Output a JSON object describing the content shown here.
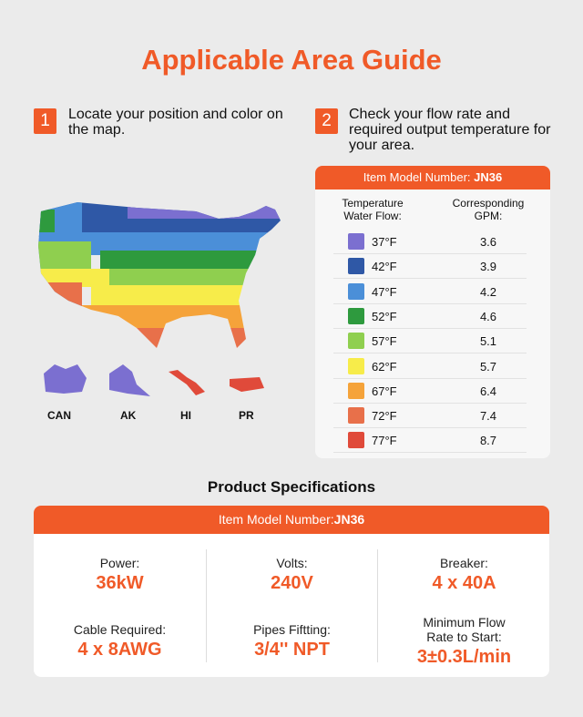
{
  "title": "Applicable Area Guide",
  "step1": {
    "number": "1",
    "text": "Locate your position and color on the map."
  },
  "step2": {
    "number": "2",
    "text": "Check your flow rate and required output temperature for your area."
  },
  "map": {
    "insets": [
      "CAN",
      "AK",
      "HI",
      "PR"
    ]
  },
  "table": {
    "header": {
      "label": "Item Model Number: ",
      "model": "JN36"
    },
    "columns": [
      "Temperature Water Flow:",
      "Corresponding GPM:"
    ],
    "rows": [
      {
        "temperature": "37°F",
        "gpm": "3.6",
        "color": "#7b6fd0"
      },
      {
        "temperature": "42°F",
        "gpm": "3.9",
        "color": "#2f58a6"
      },
      {
        "temperature": "47°F",
        "gpm": "4.2",
        "color": "#4b8fd8"
      },
      {
        "temperature": "52°F",
        "gpm": "4.6",
        "color": "#2e9a3e"
      },
      {
        "temperature": "57°F",
        "gpm": "5.1",
        "color": "#8fcf4f"
      },
      {
        "temperature": "62°F",
        "gpm": "5.7",
        "color": "#f7ec4a"
      },
      {
        "temperature": "67°F",
        "gpm": "6.4",
        "color": "#f5a33a"
      },
      {
        "temperature": "72°F",
        "gpm": "7.4",
        "color": "#e8704a"
      },
      {
        "temperature": "77°F",
        "gpm": "8.7",
        "color": "#e04a3a"
      }
    ]
  },
  "specs": {
    "title": "Product Specifications",
    "header": {
      "label": "Item Model Number:",
      "model": "JN36"
    },
    "items": [
      {
        "label": "Power:",
        "value": "36kW"
      },
      {
        "label": "Volts:",
        "value": "240V"
      },
      {
        "label": "Breaker:",
        "value": "4 x 40A"
      },
      {
        "label": "Cable Required:",
        "value": "4 x 8AWG"
      },
      {
        "label": "Pipes Fiftting:",
        "value": "3/4'' NPT"
      },
      {
        "label": "Minimum Flow Rate to Start:",
        "value": "3±0.3L/min"
      }
    ]
  }
}
